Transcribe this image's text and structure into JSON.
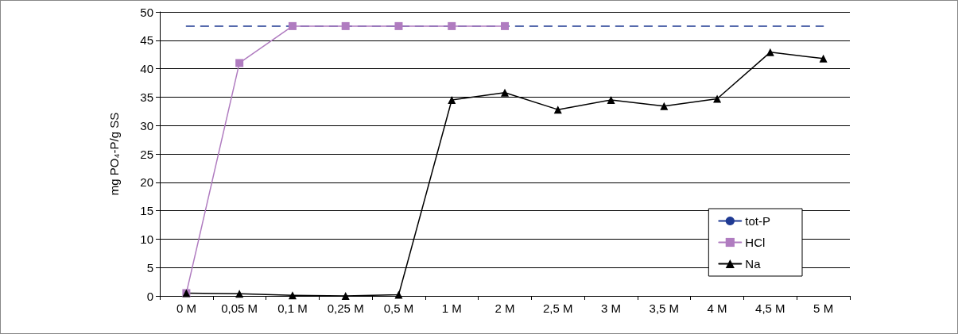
{
  "chart_data": {
    "type": "line",
    "ylabel": "mg PO₄-P/g SS",
    "categories": [
      "0 M",
      "0,05 M",
      "0,1 M",
      "0,25 M",
      "0,5 M",
      "1 M",
      "2 M",
      "2,5 M",
      "3 M",
      "3,5 M",
      "4 M",
      "4,5 M",
      "5 M"
    ],
    "series": [
      {
        "name": "tot-P",
        "color": "#1f3a93",
        "line_style": "dashed",
        "marker": "none",
        "values": [
          47.5,
          47.5,
          47.5,
          47.5,
          47.5,
          47.5,
          47.5,
          47.5,
          47.5,
          47.5,
          47.5,
          47.5,
          47.5
        ]
      },
      {
        "name": "HCl",
        "color": "#b07cc0",
        "line_style": "solid",
        "marker": "square",
        "values": [
          0.5,
          41,
          47.5,
          47.5,
          47.5,
          47.5,
          47.5,
          null,
          null,
          null,
          null,
          null,
          null
        ]
      },
      {
        "name": "Na",
        "color": "#000000",
        "line_style": "solid",
        "marker": "triangle",
        "values": [
          0.5,
          0.4,
          0.1,
          0,
          0.2,
          34.5,
          35.8,
          32.8,
          34.5,
          33.4,
          34.7,
          42.9,
          41.8
        ]
      }
    ],
    "ylim": [
      0,
      50
    ],
    "yticks": [
      0,
      5,
      10,
      15,
      20,
      25,
      30,
      35,
      40,
      45,
      50
    ],
    "grid": "y",
    "legend": "bottom right"
  }
}
